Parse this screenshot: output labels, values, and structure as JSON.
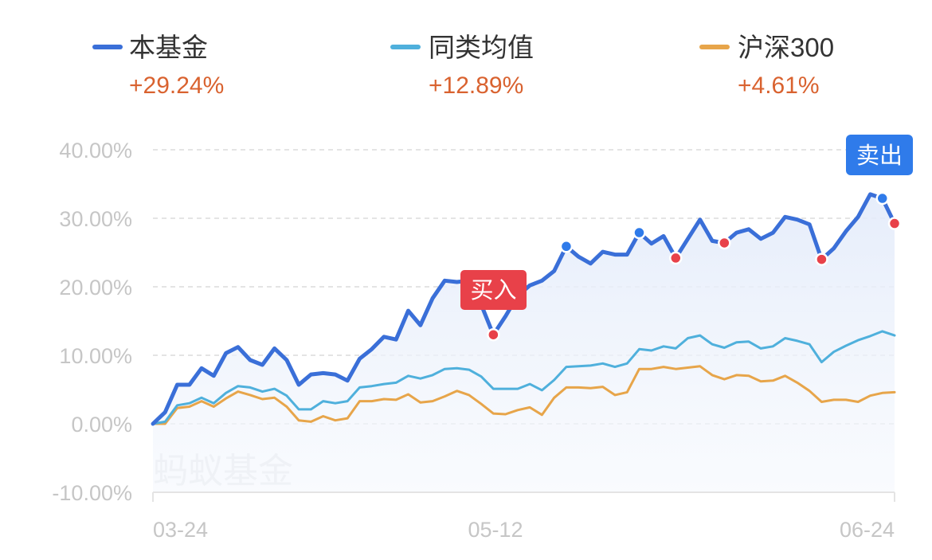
{
  "legend": [
    {
      "label": "本基金",
      "value": "+29.24%",
      "color": "#3a6fd8"
    },
    {
      "label": "同类均值",
      "value": "+12.89%",
      "color": "#4fb0dc"
    },
    {
      "label": "沪深300",
      "value": "+4.61%",
      "color": "#e7a54a"
    }
  ],
  "watermark": "蚂蚁基金",
  "annotations": {
    "buy": {
      "label": "买入",
      "color": "#e84149"
    },
    "sell": {
      "label": "卖出",
      "color": "#2f7bea"
    }
  },
  "axis": {
    "y_ticks": [
      "40.00%",
      "30.00%",
      "20.00%",
      "10.00%",
      "0.00%",
      "-10.00%"
    ],
    "x_ticks": [
      "03-24",
      "05-12",
      "06-24"
    ]
  },
  "chart_data": {
    "type": "line",
    "title": "",
    "xlabel": "",
    "ylabel": "",
    "ylim": [
      -10,
      40
    ],
    "y_ticks": [
      40,
      30,
      20,
      10,
      0,
      -10
    ],
    "x_tick_labels": [
      "03-24",
      "05-12",
      "06-24"
    ],
    "grid": true,
    "legend_position": "top",
    "x": [
      0,
      1,
      2,
      3,
      4,
      5,
      6,
      7,
      8,
      9,
      10,
      11,
      12,
      13,
      14,
      15,
      16,
      17,
      18,
      19,
      20,
      21,
      22,
      23,
      24,
      25,
      26,
      27,
      28,
      29,
      30,
      31,
      32,
      33,
      34,
      35,
      36,
      37,
      38,
      39,
      40,
      41,
      42,
      43,
      44,
      45,
      46,
      47,
      48,
      49,
      50,
      51,
      52,
      53,
      54,
      55,
      56,
      57,
      58,
      59,
      60,
      61
    ],
    "series": [
      {
        "name": "本基金",
        "color": "#3a6fd8",
        "final": "+29.24%",
        "values": [
          0.0,
          1.7,
          5.7,
          5.7,
          8.1,
          7.0,
          10.3,
          11.2,
          9.3,
          8.6,
          11.0,
          9.3,
          5.7,
          7.2,
          7.4,
          7.2,
          6.3,
          9.5,
          10.9,
          12.7,
          12.3,
          16.5,
          14.4,
          18.3,
          20.9,
          20.7,
          20.9,
          17.4,
          13.0,
          15.7,
          18.7,
          20.2,
          20.9,
          22.3,
          25.9,
          24.4,
          23.4,
          25.1,
          24.7,
          24.7,
          27.9,
          26.3,
          27.4,
          24.2,
          27.0,
          29.8,
          26.7,
          26.4,
          27.9,
          28.4,
          27.0,
          27.9,
          30.2,
          29.8,
          29.1,
          24.0,
          25.6,
          28.1,
          30.2,
          33.5,
          32.9,
          29.24
        ]
      },
      {
        "name": "同类均值",
        "color": "#4fb0dc",
        "final": "+12.89%",
        "values": [
          0.0,
          0.3,
          2.7,
          3.0,
          3.8,
          3.0,
          4.5,
          5.5,
          5.3,
          4.7,
          5.1,
          4.1,
          2.1,
          2.1,
          3.3,
          3.0,
          3.3,
          5.3,
          5.5,
          5.8,
          6.0,
          7.0,
          6.6,
          7.1,
          8.0,
          8.1,
          7.9,
          6.9,
          5.1,
          5.1,
          5.1,
          5.8,
          4.9,
          6.4,
          8.3,
          8.4,
          8.5,
          8.8,
          8.3,
          8.8,
          10.9,
          10.7,
          11.3,
          11.0,
          12.5,
          12.9,
          11.6,
          11.1,
          11.9,
          12.0,
          11.0,
          11.3,
          12.5,
          12.1,
          11.6,
          9.0,
          10.5,
          11.4,
          12.2,
          12.8,
          13.5,
          12.89
        ]
      },
      {
        "name": "沪深300",
        "color": "#e7a54a",
        "final": "+4.61%",
        "values": [
          0.0,
          0.0,
          2.3,
          2.5,
          3.3,
          2.5,
          3.7,
          4.7,
          4.2,
          3.6,
          3.8,
          2.5,
          0.5,
          0.3,
          1.1,
          0.5,
          0.8,
          3.3,
          3.3,
          3.6,
          3.5,
          4.3,
          3.1,
          3.3,
          4.0,
          4.8,
          4.2,
          2.9,
          1.5,
          1.4,
          2.0,
          2.4,
          1.3,
          3.8,
          5.3,
          5.3,
          5.2,
          5.4,
          4.2,
          4.6,
          8.0,
          8.0,
          8.3,
          8.0,
          8.2,
          8.4,
          7.1,
          6.5,
          7.1,
          7.0,
          6.2,
          6.3,
          7.0,
          6.0,
          4.8,
          3.2,
          3.5,
          3.5,
          3.2,
          4.1,
          4.5,
          4.61
        ]
      }
    ],
    "markers": {
      "buy_points": [
        {
          "index": 28,
          "value": 13.0
        },
        {
          "index": 43,
          "value": 24.2
        },
        {
          "index": 47,
          "value": 26.4
        },
        {
          "index": 55,
          "value": 24.0
        },
        {
          "index": 61,
          "value": 29.24
        }
      ],
      "sell_points": [
        {
          "index": 34,
          "value": 25.9
        },
        {
          "index": 40,
          "value": 27.9
        },
        {
          "index": 60,
          "value": 32.9
        }
      ]
    }
  }
}
